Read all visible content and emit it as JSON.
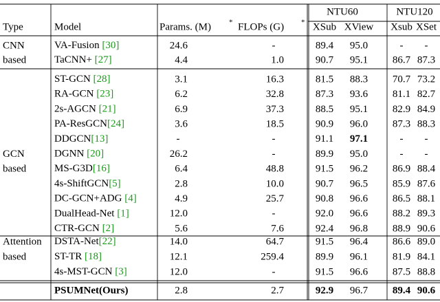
{
  "table": {
    "header": {
      "type": "Type",
      "model": "Model",
      "params": "Params. (M)",
      "flops": "FLOPs (G)",
      "marker": "*",
      "ntu60": "NTU60",
      "ntu120": "NTU120",
      "xsub60": "XSub",
      "xview": "XView",
      "xsub120": "Xsub",
      "xset": "XSet"
    },
    "groups": [
      {
        "type": [
          "CNN",
          "based"
        ],
        "rows": [
          {
            "model": "VA-Fusion ",
            "cite": "[30]",
            "cells": [
              "24.6",
              "-",
              "89.4",
              "95.0",
              "-",
              "-"
            ]
          },
          {
            "model": "TaCNN+ ",
            "cite": "[27]",
            "cells": [
              "4.4",
              "1.0",
              "90.7",
              "95.1",
              "86.7",
              "87.3"
            ]
          }
        ]
      },
      {
        "type": [
          "GCN",
          "based"
        ],
        "rows": [
          {
            "model": "ST-GCN ",
            "cite": "[28]",
            "cells": [
              "3.1",
              "16.3",
              "81.5",
              "88.3",
              "70.7",
              "73.2"
            ]
          },
          {
            "model": "RA-GCN ",
            "cite": "[23]",
            "cells": [
              "6.2",
              "32.8",
              "87.3",
              "93.6",
              "81.1",
              "82.7"
            ]
          },
          {
            "model": "2s-AGCN ",
            "cite": "[21]",
            "cells": [
              "6.9",
              "37.3",
              "88.5",
              "95.1",
              "82.9",
              "84.9"
            ]
          },
          {
            "model": "PA-ResGCN",
            "cite": "[24]",
            "cells": [
              "3.6",
              "18.5",
              "90.9",
              "96.0",
              "87.3",
              "88.3"
            ]
          },
          {
            "model": "DDGCN",
            "cite": "[13]",
            "cells": [
              "-",
              "-",
              "91.1",
              "97.1",
              "-",
              "-"
            ]
          },
          {
            "model": "DGNN ",
            "cite": "[20]",
            "cells": [
              "26.2",
              "-",
              "89.9",
              "95.0",
              "-",
              "-"
            ]
          },
          {
            "model": "MS-G3D",
            "cite": "[16]",
            "cells": [
              "6.4",
              "48.8",
              "91.5",
              "96.2",
              "86.9",
              "88.4"
            ]
          },
          {
            "model": "4s-ShiftGCN",
            "cite": "[5]",
            "cells": [
              "2.8",
              "10.0",
              "90.7",
              "96.5",
              "85.9",
              "87.6"
            ]
          },
          {
            "model": "DC-GCN+ADG ",
            "cite": "[4]",
            "cells": [
              "4.9",
              "25.7",
              "90.8",
              "96.6",
              "86.5",
              "88.1"
            ]
          },
          {
            "model": "DualHead-Net ",
            "cite": "[1]",
            "cells": [
              "12.0",
              "-",
              "92.0",
              "96.6",
              "88.2",
              "89.3"
            ]
          },
          {
            "model": "CTR-GCN ",
            "cite": "[2]",
            "cells": [
              "5.6",
              "7.6",
              "92.4",
              "96.8",
              "88.9",
              "90.6"
            ]
          }
        ]
      },
      {
        "type": [
          "Attention",
          "based"
        ],
        "rows": [
          {
            "model": "DSTA-Net",
            "cite": "[22]",
            "cells": [
              "14.0",
              "64.7",
              "91.5",
              "96.4",
              "86.6",
              "89.0"
            ]
          },
          {
            "model": "ST-TR ",
            "cite": "[18]",
            "cells": [
              "12.1",
              "259.4",
              "89.9",
              "96.1",
              "81.9",
              "84.1"
            ]
          },
          {
            "model": "4s-MST-GCN ",
            "cite": "[3]",
            "cells": [
              "12.0",
              "-",
              "91.5",
              "96.6",
              "87.5",
              "88.8"
            ]
          }
        ]
      }
    ],
    "ours": {
      "model": "PSUMNet(Ours)",
      "cells": [
        "2.8",
        "2.7",
        "92.9",
        "96.7",
        "89.4",
        "90.6"
      ]
    }
  }
}
